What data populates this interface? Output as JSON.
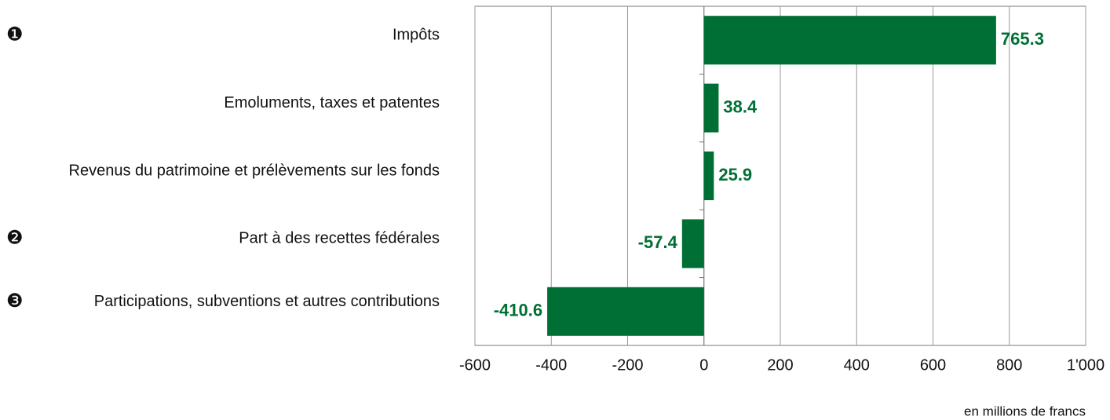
{
  "chart_data": {
    "type": "barh",
    "categories": [
      "Impôts",
      "Emoluments, taxes et patentes",
      "Revenus du patrimoine et prélèvements sur les fonds",
      "Part à des recettes fédérales",
      "Participations, subventions et autres contributions"
    ],
    "markers": [
      "❶",
      null,
      null,
      "❷",
      "❸"
    ],
    "values": [
      765.3,
      38.4,
      25.9,
      -57.4,
      -410.6
    ],
    "color": "#006f35",
    "xlim": [
      -600,
      1000
    ],
    "xticks": [
      -600,
      -400,
      -200,
      0,
      200,
      400,
      600,
      800,
      {
        "value": 1000,
        "label": "1'000"
      }
    ],
    "xlabel": "en millions de francs",
    "grid": true
  }
}
